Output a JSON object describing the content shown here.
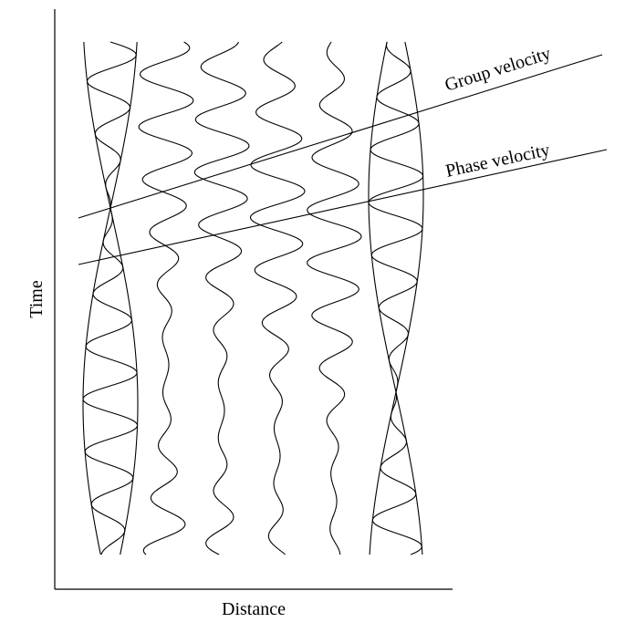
{
  "axes": {
    "x_label": "Distance",
    "y_label": "Time"
  },
  "annotations": {
    "group_velocity": "Group velocity",
    "phase_velocity": "Phase velocity"
  },
  "wave_packet": {
    "trace_count": 7,
    "envelope_shown_on": [
      "first-trace",
      "last-trace"
    ]
  }
}
